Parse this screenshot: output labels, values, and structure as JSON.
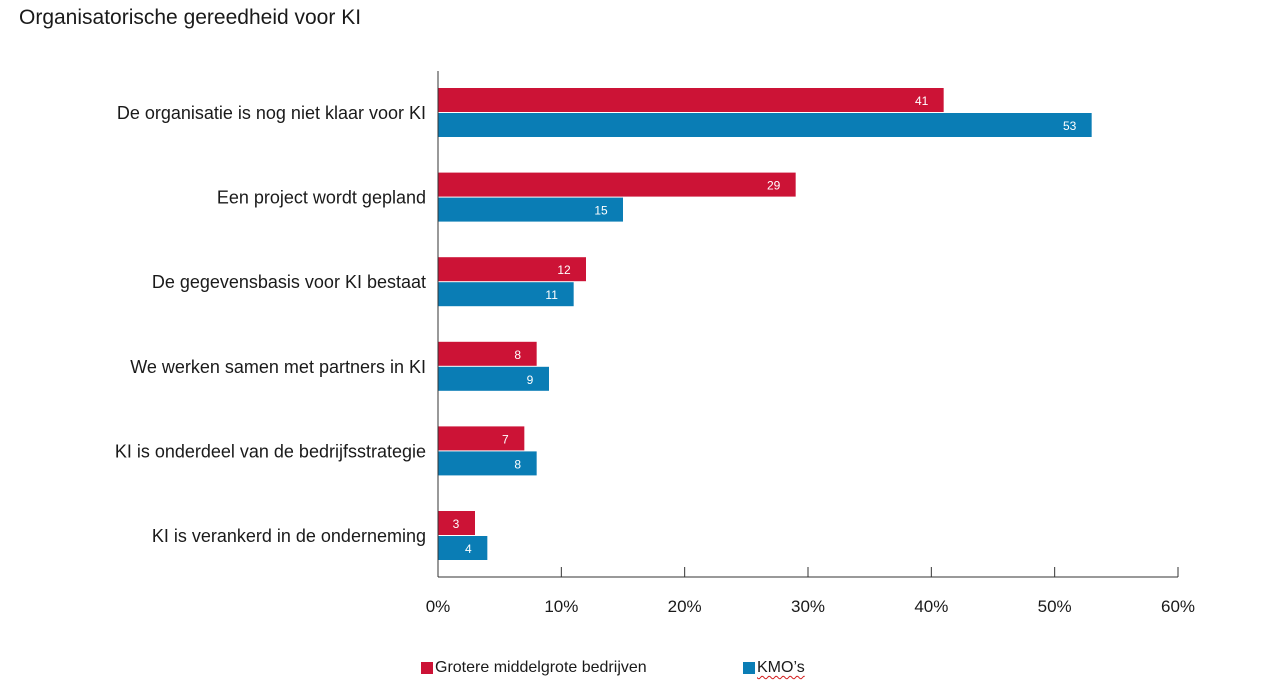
{
  "chart_data": {
    "type": "bar",
    "orientation": "horizontal",
    "title": "Organisatorische gereedheid voor KI",
    "categories": [
      "De organisatie is nog niet klaar voor KI",
      "Een project wordt gepland",
      "De gegevensbasis voor KI bestaat",
      "We werken samen met partners in KI",
      "KI is onderdeel van de bedrijfsstrategie",
      "KI is verankerd in de onderneming"
    ],
    "series": [
      {
        "name": "Grotere middelgrote bedrijven",
        "color": "#cc1336",
        "values": [
          41,
          29,
          12,
          8,
          7,
          3
        ],
        "labels": [
          "41",
          "29",
          "12",
          "8",
          "7",
          "3"
        ]
      },
      {
        "name": "KMO’s",
        "color": "#0a7db5",
        "values": [
          53,
          15,
          11,
          9,
          8,
          4
        ],
        "labels": [
          "53",
          "15",
          "11",
          "9",
          "8",
          "4"
        ]
      }
    ],
    "xlim": [
      0,
      60
    ],
    "xticks": [
      "0%",
      "10%",
      "20%",
      "30%",
      "40%",
      "50%",
      "60%"
    ],
    "grid": false,
    "legend_position": "bottom"
  }
}
